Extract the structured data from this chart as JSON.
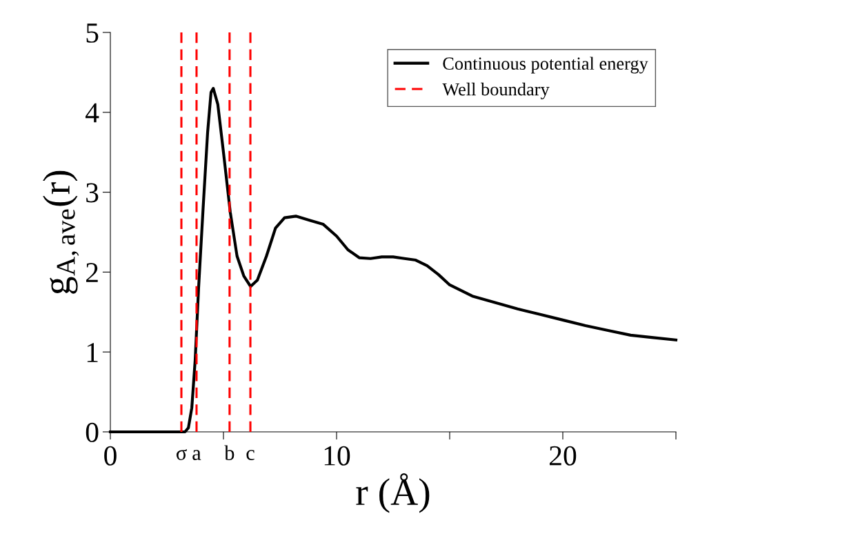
{
  "chart_data": {
    "type": "line",
    "xlabel": "r (Å)",
    "ylabel": "g$_{A,ave}$(r)",
    "xlim": [
      0,
      25
    ],
    "ylim": [
      0,
      5
    ],
    "xticks": [
      0,
      {
        "value": 5,
        "label": null
      },
      10,
      {
        "value": 15,
        "label": null
      },
      20,
      {
        "value": 25,
        "label": null
      }
    ],
    "annotations": [
      {
        "text": "σ",
        "x": 3.14,
        "y": 0
      },
      {
        "text": "a",
        "x": 3.81,
        "y": 0
      },
      {
        "text": "b",
        "x": 5.27,
        "y": 0
      },
      {
        "text": "c",
        "x": 6.19,
        "y": 0
      }
    ],
    "yticks": [
      0,
      1,
      2,
      3,
      4,
      5
    ],
    "grid": false,
    "legend": "top right",
    "line_style": "solid",
    "series": [
      {
        "name": "Continuous potential energy",
        "color": "#000000",
        "x": [
          0,
          3.3,
          3.45,
          3.6,
          3.75,
          3.9,
          4.1,
          4.3,
          4.45,
          4.55,
          4.75,
          5.0,
          5.3,
          5.6,
          5.9,
          6.2,
          6.5,
          6.9,
          7.3,
          7.7,
          8.2,
          8.8,
          9.4,
          10,
          10.5,
          11,
          11.5,
          12,
          12.5,
          13,
          13.5,
          14,
          14.5,
          15,
          16,
          17,
          18,
          19,
          20,
          21,
          22,
          23,
          24,
          25
        ],
        "values": [
          0,
          0,
          0.05,
          0.3,
          0.9,
          1.8,
          2.8,
          3.75,
          4.25,
          4.3,
          4.1,
          3.5,
          2.75,
          2.2,
          1.95,
          1.82,
          1.9,
          2.2,
          2.55,
          2.68,
          2.7,
          2.65,
          2.6,
          2.45,
          2.28,
          2.18,
          2.17,
          2.19,
          2.19,
          2.17,
          2.15,
          2.08,
          1.97,
          1.84,
          1.7,
          1.62,
          1.54,
          1.47,
          1.4,
          1.33,
          1.27,
          1.21,
          1.18,
          1.15
        ]
      },
      {
        "name": "Well boundary",
        "color": "#ff0000",
        "line_style": "dashed",
        "x": [
          3.14,
          3.14,
          null,
          3.81,
          3.81,
          null,
          5.27,
          5.27,
          null,
          6.19,
          6.19
        ],
        "values": [
          0,
          5,
          null,
          0,
          5,
          null,
          0,
          5,
          null,
          0,
          5
        ]
      }
    ]
  }
}
